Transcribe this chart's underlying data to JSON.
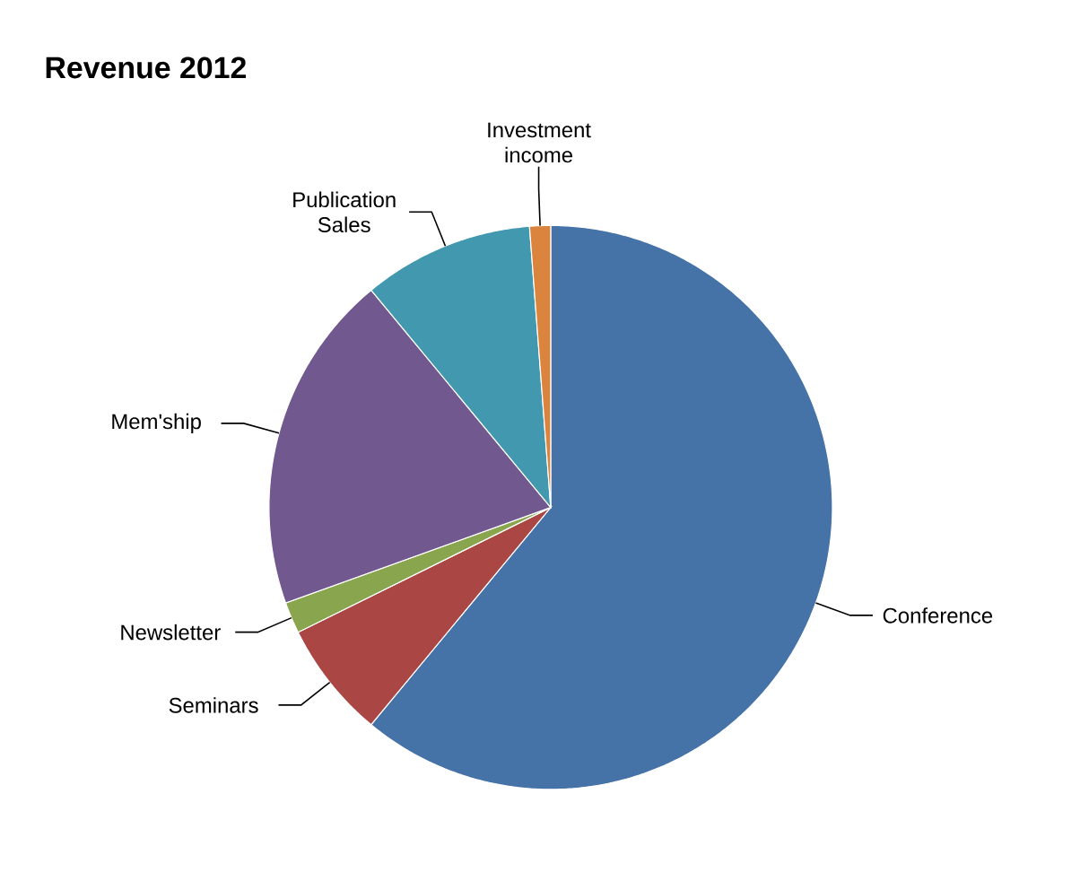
{
  "chart_data": {
    "type": "pie",
    "title": "Revenue 2012",
    "categories": [
      "Conference",
      "Seminars",
      "Newsletter",
      "Mem'ship",
      "Publication Sales",
      "Investment income"
    ],
    "values": [
      61,
      6.7,
      1.8,
      19.5,
      9.8,
      1.2
    ],
    "colors": [
      "#4572a7",
      "#aa4643",
      "#89a54e",
      "#71588f",
      "#4198af",
      "#db843d"
    ]
  }
}
